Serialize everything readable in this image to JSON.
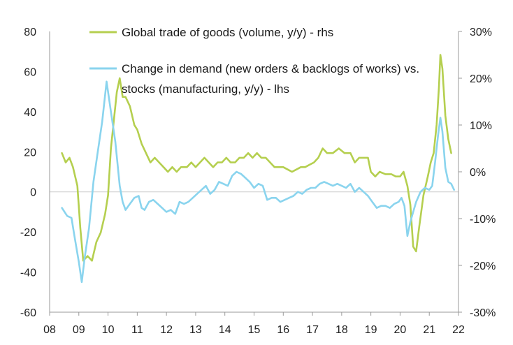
{
  "colors": {
    "green": "#B5CF4F",
    "blue": "#8AD4EE",
    "axis": "#999999",
    "zero": "#cccccc",
    "text": "#222222"
  },
  "legend": {
    "green_line1": "Global trade of goods (volume, y/y) - rhs",
    "blue_line1": "Change in demand (new orders & backlogs of works) vs.",
    "blue_line2": "stocks (manufacturing, y/y) - lhs"
  },
  "chart_data": {
    "type": "line",
    "x_ticks": [
      "08",
      "09",
      "10",
      "11",
      "12",
      "13",
      "14",
      "15",
      "16",
      "17",
      "18",
      "19",
      "20",
      "21",
      "22"
    ],
    "x_range": [
      2008,
      2022
    ],
    "left_axis": {
      "ticks": [
        "80",
        "60",
        "40",
        "20",
        "0",
        "-20",
        "-40",
        "-60"
      ],
      "range": [
        -60,
        80
      ]
    },
    "right_axis": {
      "ticks": [
        "30%",
        "20%",
        "10%",
        "0%",
        "-10%",
        "-20%",
        "-30%"
      ],
      "range": [
        -30,
        30
      ]
    },
    "series": [
      {
        "name": "Global trade of goods (volume, y/y) - rhs",
        "axis": "right",
        "color": "#B5CF4F",
        "points": [
          [
            2008.42,
            4
          ],
          [
            2008.55,
            2
          ],
          [
            2008.68,
            3
          ],
          [
            2008.8,
            1
          ],
          [
            2008.95,
            -3
          ],
          [
            2009.05,
            -12
          ],
          [
            2009.15,
            -19
          ],
          [
            2009.3,
            -18
          ],
          [
            2009.45,
            -19
          ],
          [
            2009.6,
            -15
          ],
          [
            2009.75,
            -13
          ],
          [
            2009.9,
            -9
          ],
          [
            2010.0,
            -5
          ],
          [
            2010.1,
            5
          ],
          [
            2010.2,
            11
          ],
          [
            2010.3,
            17
          ],
          [
            2010.4,
            20
          ],
          [
            2010.5,
            16
          ],
          [
            2010.6,
            16
          ],
          [
            2010.75,
            14
          ],
          [
            2010.9,
            10
          ],
          [
            2011.0,
            9
          ],
          [
            2011.15,
            6
          ],
          [
            2011.3,
            4
          ],
          [
            2011.45,
            2
          ],
          [
            2011.6,
            3
          ],
          [
            2011.75,
            2
          ],
          [
            2011.9,
            1
          ],
          [
            2012.05,
            0
          ],
          [
            2012.2,
            1
          ],
          [
            2012.35,
            0
          ],
          [
            2012.5,
            1
          ],
          [
            2012.7,
            1
          ],
          [
            2012.85,
            2
          ],
          [
            2013.0,
            1
          ],
          [
            2013.15,
            2
          ],
          [
            2013.3,
            3
          ],
          [
            2013.45,
            2
          ],
          [
            2013.6,
            1
          ],
          [
            2013.75,
            2
          ],
          [
            2013.9,
            2
          ],
          [
            2014.05,
            3
          ],
          [
            2014.2,
            2
          ],
          [
            2014.35,
            2
          ],
          [
            2014.5,
            3
          ],
          [
            2014.65,
            3
          ],
          [
            2014.8,
            4
          ],
          [
            2014.95,
            3
          ],
          [
            2015.1,
            4
          ],
          [
            2015.25,
            3
          ],
          [
            2015.4,
            3
          ],
          [
            2015.55,
            2
          ],
          [
            2015.7,
            1
          ],
          [
            2015.85,
            1
          ],
          [
            2016.0,
            1
          ],
          [
            2016.15,
            0.5
          ],
          [
            2016.3,
            0
          ],
          [
            2016.45,
            0.5
          ],
          [
            2016.6,
            1
          ],
          [
            2016.75,
            1
          ],
          [
            2016.9,
            1.5
          ],
          [
            2017.05,
            2
          ],
          [
            2017.2,
            3
          ],
          [
            2017.35,
            5
          ],
          [
            2017.5,
            4
          ],
          [
            2017.7,
            4
          ],
          [
            2017.9,
            5
          ],
          [
            2018.1,
            4
          ],
          [
            2018.3,
            4
          ],
          [
            2018.45,
            2
          ],
          [
            2018.6,
            3
          ],
          [
            2018.75,
            3
          ],
          [
            2018.9,
            3
          ],
          [
            2019.0,
            0
          ],
          [
            2019.15,
            -1
          ],
          [
            2019.3,
            0
          ],
          [
            2019.5,
            -0.5
          ],
          [
            2019.7,
            -0.5
          ],
          [
            2019.85,
            -1
          ],
          [
            2020.0,
            -1
          ],
          [
            2020.12,
            0
          ],
          [
            2020.25,
            -3
          ],
          [
            2020.35,
            -7
          ],
          [
            2020.45,
            -16
          ],
          [
            2020.55,
            -17
          ],
          [
            2020.65,
            -12
          ],
          [
            2020.8,
            -5
          ],
          [
            2020.95,
            -1
          ],
          [
            2021.05,
            2
          ],
          [
            2021.15,
            4
          ],
          [
            2021.25,
            10
          ],
          [
            2021.33,
            18
          ],
          [
            2021.38,
            25
          ],
          [
            2021.45,
            22
          ],
          [
            2021.55,
            12
          ],
          [
            2021.65,
            7
          ],
          [
            2021.75,
            4
          ]
        ]
      },
      {
        "name": "Change in demand (new orders & backlogs of works) vs. stocks (manufacturing, y/y) - lhs",
        "axis": "left",
        "color": "#8AD4EE",
        "points": [
          [
            2008.42,
            -8
          ],
          [
            2008.6,
            -12
          ],
          [
            2008.75,
            -13
          ],
          [
            2008.85,
            -22
          ],
          [
            2009.0,
            -35
          ],
          [
            2009.1,
            -45
          ],
          [
            2009.2,
            -33
          ],
          [
            2009.35,
            -18
          ],
          [
            2009.5,
            5
          ],
          [
            2009.65,
            20
          ],
          [
            2009.8,
            35
          ],
          [
            2009.95,
            55
          ],
          [
            2010.1,
            40
          ],
          [
            2010.25,
            25
          ],
          [
            2010.4,
            3
          ],
          [
            2010.5,
            -5
          ],
          [
            2010.6,
            -9
          ],
          [
            2010.75,
            -6
          ],
          [
            2010.9,
            -3
          ],
          [
            2011.05,
            -2
          ],
          [
            2011.15,
            -8
          ],
          [
            2011.25,
            -9
          ],
          [
            2011.4,
            -5
          ],
          [
            2011.55,
            -4
          ],
          [
            2011.7,
            -6
          ],
          [
            2011.85,
            -8
          ],
          [
            2012.0,
            -10
          ],
          [
            2012.15,
            -9
          ],
          [
            2012.3,
            -11
          ],
          [
            2012.45,
            -5
          ],
          [
            2012.6,
            -6
          ],
          [
            2012.75,
            -5
          ],
          [
            2012.9,
            -3
          ],
          [
            2013.05,
            -1
          ],
          [
            2013.2,
            1
          ],
          [
            2013.35,
            3
          ],
          [
            2013.5,
            -1
          ],
          [
            2013.65,
            1
          ],
          [
            2013.8,
            5
          ],
          [
            2013.95,
            4
          ],
          [
            2014.1,
            3
          ],
          [
            2014.25,
            8
          ],
          [
            2014.4,
            10
          ],
          [
            2014.55,
            9
          ],
          [
            2014.7,
            7
          ],
          [
            2014.85,
            5
          ],
          [
            2015.0,
            2
          ],
          [
            2015.15,
            4
          ],
          [
            2015.3,
            3
          ],
          [
            2015.45,
            -4
          ],
          [
            2015.6,
            -3
          ],
          [
            2015.75,
            -3
          ],
          [
            2015.9,
            -5
          ],
          [
            2016.05,
            -4
          ],
          [
            2016.2,
            -3
          ],
          [
            2016.35,
            -2
          ],
          [
            2016.5,
            0
          ],
          [
            2016.65,
            -1
          ],
          [
            2016.8,
            1
          ],
          [
            2016.95,
            2
          ],
          [
            2017.1,
            2
          ],
          [
            2017.25,
            4
          ],
          [
            2017.4,
            5
          ],
          [
            2017.55,
            4
          ],
          [
            2017.7,
            3
          ],
          [
            2017.85,
            4
          ],
          [
            2018.0,
            3
          ],
          [
            2018.15,
            2
          ],
          [
            2018.3,
            4
          ],
          [
            2018.45,
            0
          ],
          [
            2018.6,
            2
          ],
          [
            2018.75,
            0
          ],
          [
            2018.9,
            -2
          ],
          [
            2019.05,
            -5
          ],
          [
            2019.2,
            -8
          ],
          [
            2019.35,
            -7
          ],
          [
            2019.5,
            -7
          ],
          [
            2019.65,
            -8
          ],
          [
            2019.8,
            -6
          ],
          [
            2019.95,
            -5
          ],
          [
            2020.05,
            -3
          ],
          [
            2020.15,
            -7
          ],
          [
            2020.25,
            -22
          ],
          [
            2020.35,
            -15
          ],
          [
            2020.45,
            -10
          ],
          [
            2020.55,
            -5
          ],
          [
            2020.7,
            0
          ],
          [
            2020.85,
            2
          ],
          [
            2021.0,
            1
          ],
          [
            2021.1,
            3
          ],
          [
            2021.2,
            15
          ],
          [
            2021.3,
            28
          ],
          [
            2021.38,
            37
          ],
          [
            2021.45,
            30
          ],
          [
            2021.55,
            12
          ],
          [
            2021.65,
            5
          ],
          [
            2021.75,
            4
          ],
          [
            2021.85,
            1
          ]
        ]
      }
    ]
  }
}
